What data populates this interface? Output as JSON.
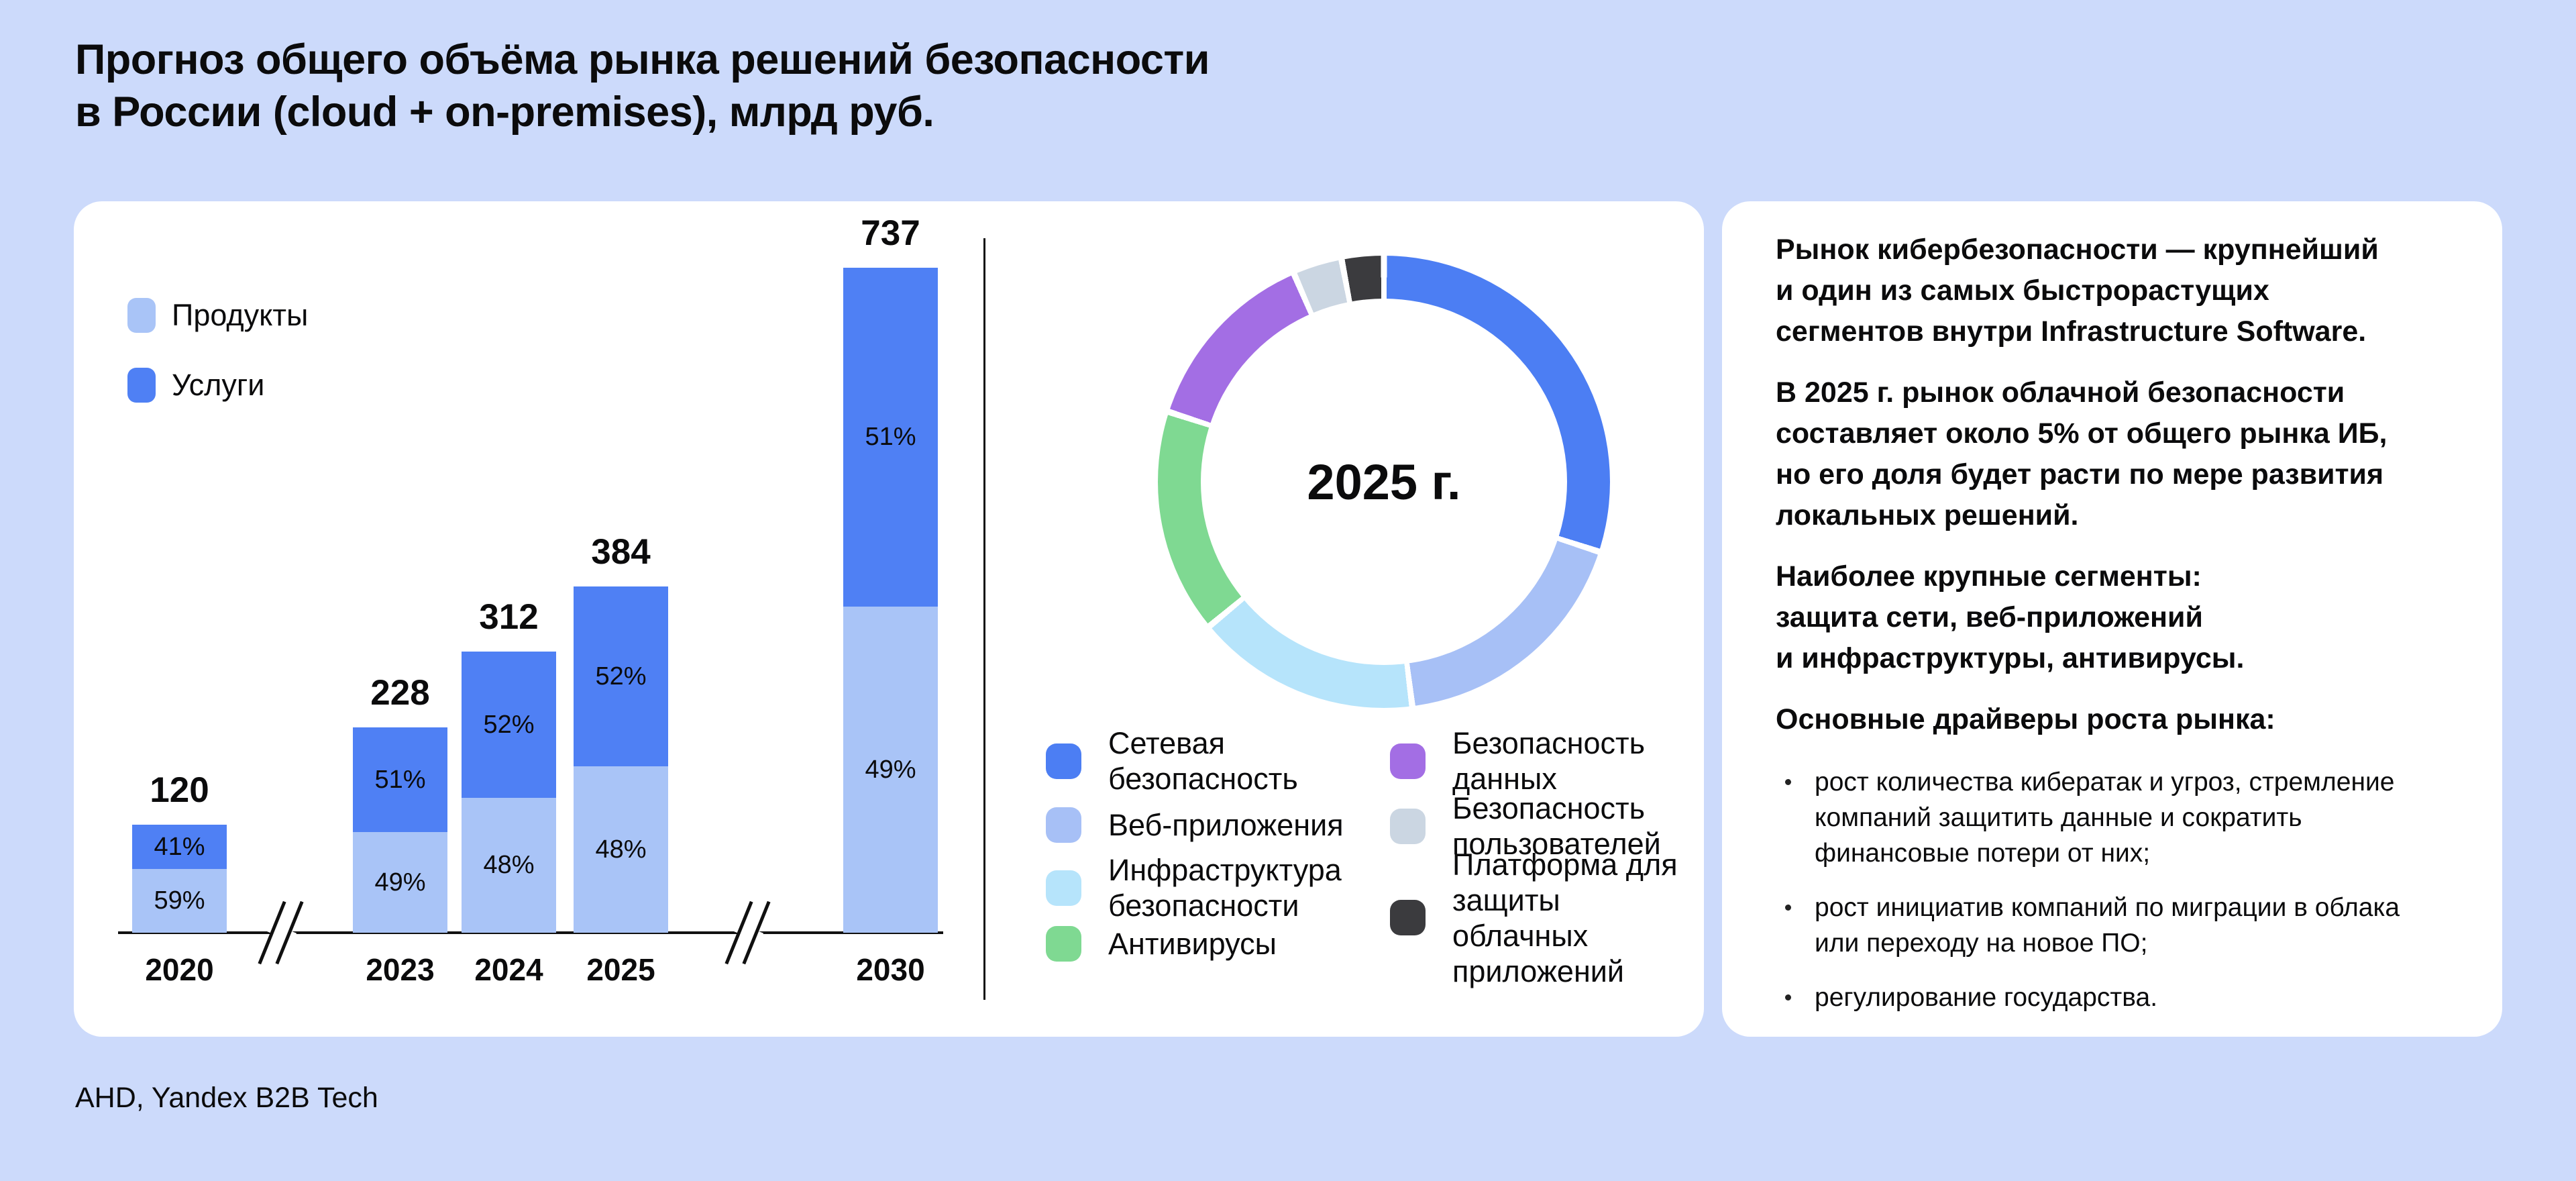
{
  "page": {
    "title": "Прогноз общего объёма рынка решений безопасности\nв России (cloud + on-premises), млрд руб.",
    "source": "AHD, Yandex B2B Tech",
    "background": "#ccdafb",
    "card_color": "#ffffff",
    "text_color": "#0b0b0c"
  },
  "chart_data": [
    {
      "type": "bar",
      "subtype": "stacked-bar",
      "title": "Прогноз общего объёма рынка решений безопасности в России (cloud + on-premises)",
      "unit": "млрд руб.",
      "categories": [
        "2020",
        "2023",
        "2024",
        "2025",
        "2030"
      ],
      "totals": [
        120,
        228,
        312,
        384,
        737
      ],
      "series": [
        {
          "name": "Продукты",
          "color": "#a9c4f7",
          "pct": [
            59,
            49,
            48,
            48,
            49
          ]
        },
        {
          "name": "Услуги",
          "color": "#4f80f4",
          "pct": [
            41,
            51,
            52,
            52,
            51
          ]
        }
      ],
      "axis_breaks_between": [
        [
          "2020",
          "2023"
        ],
        [
          "2025",
          "2030"
        ]
      ],
      "legend_position": "top-left",
      "grid": false
    },
    {
      "type": "pie",
      "subtype": "donut",
      "center_label": "2025 г.",
      "segments": [
        {
          "label": "Сетевая\nбезопасность",
          "color": "#4c7ef3",
          "pct": 30
        },
        {
          "label": "Веб-приложения",
          "color": "#a7c0f6",
          "pct": 18
        },
        {
          "label": "Инфраструктура\nбезопасности",
          "color": "#b6e4fb",
          "pct": 16
        },
        {
          "label": "Антивирусы",
          "color": "#7fd992",
          "pct": 16
        },
        {
          "label": "Безопасность\nданных",
          "color": "#a36ee4",
          "pct": 13.5
        },
        {
          "label": "Безопасность\nпользователей",
          "color": "#cbd6e2",
          "pct": 3.5
        },
        {
          "label": "Платформа для\nзащиты облачных\nприложений",
          "color": "#3b3b3e",
          "pct": 3
        }
      ],
      "legend_position": "bottom",
      "start_angle_deg": 0
    }
  ],
  "insights": {
    "paragraphs": [
      "Рынок кибербезопасности — крупнейший\nи один из самых быстрорастущих\nсегментов внутри Infrastructure Software.",
      "В 2025 г. рынок облачной безопасности\nсоставляет около 5% от общего рынка ИБ,\nно его доля будет расти по мере развития\nлокальных решений.",
      "Наиболее крупные сегменты:\nзащита сети, веб-приложений\nи инфраструктуры, антивирусы."
    ],
    "drivers_heading": "Основные драйверы роста рынка:",
    "drivers": [
      "рост количества кибератак и угроз, стремление\nкомпаний защитить данные и сократить\nфинансовые потери от них;",
      "рост инициатив компаний по миграции в облака\nили переходу на новое ПО;",
      "регулирование государства."
    ]
  }
}
